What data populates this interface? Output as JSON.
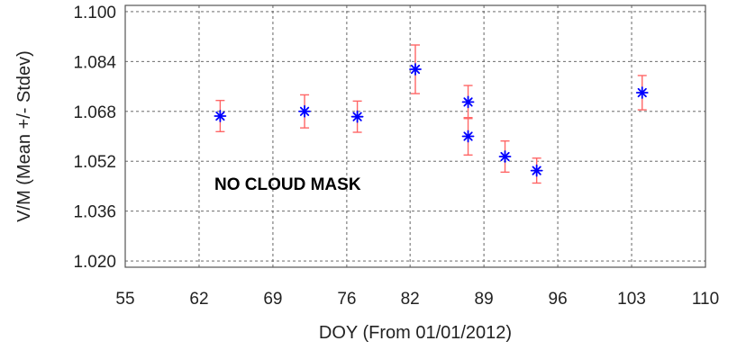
{
  "chart_data": {
    "type": "scatter",
    "title": "",
    "xlabel": "DOY (From 01/01/2012)",
    "ylabel": "V/M (Mean +/- Stdev)",
    "xlim": [
      55,
      110
    ],
    "ylim": [
      1.018,
      1.102
    ],
    "x_ticks": [
      55,
      62,
      69,
      76,
      82,
      89,
      96,
      103,
      110
    ],
    "x_tick_labels": [
      "55",
      "62",
      "69",
      "76",
      "82",
      "89",
      "96",
      "103",
      "110"
    ],
    "y_ticks": [
      1.02,
      1.036,
      1.052,
      1.068,
      1.084,
      1.1
    ],
    "y_tick_labels": [
      "1.020",
      "1.036",
      "1.052",
      "1.068",
      "1.084",
      "1.100"
    ],
    "grid": true,
    "annotation": "NO CLOUD MASK",
    "marker_color": "#0000ff",
    "errorbar_color": "#ff6666",
    "points": [
      {
        "x": 64,
        "y": 1.0665,
        "err": 0.005
      },
      {
        "x": 72,
        "y": 1.068,
        "err": 0.0053
      },
      {
        "x": 77,
        "y": 1.0663,
        "err": 0.005
      },
      {
        "x": 82.5,
        "y": 1.0815,
        "err": 0.0078
      },
      {
        "x": 87.5,
        "y": 1.071,
        "err": 0.0053
      },
      {
        "x": 87.5,
        "y": 1.06,
        "err": 0.006
      },
      {
        "x": 91,
        "y": 1.0535,
        "err": 0.005
      },
      {
        "x": 94,
        "y": 1.049,
        "err": 0.004
      },
      {
        "x": 104,
        "y": 1.074,
        "err": 0.0055
      }
    ]
  }
}
